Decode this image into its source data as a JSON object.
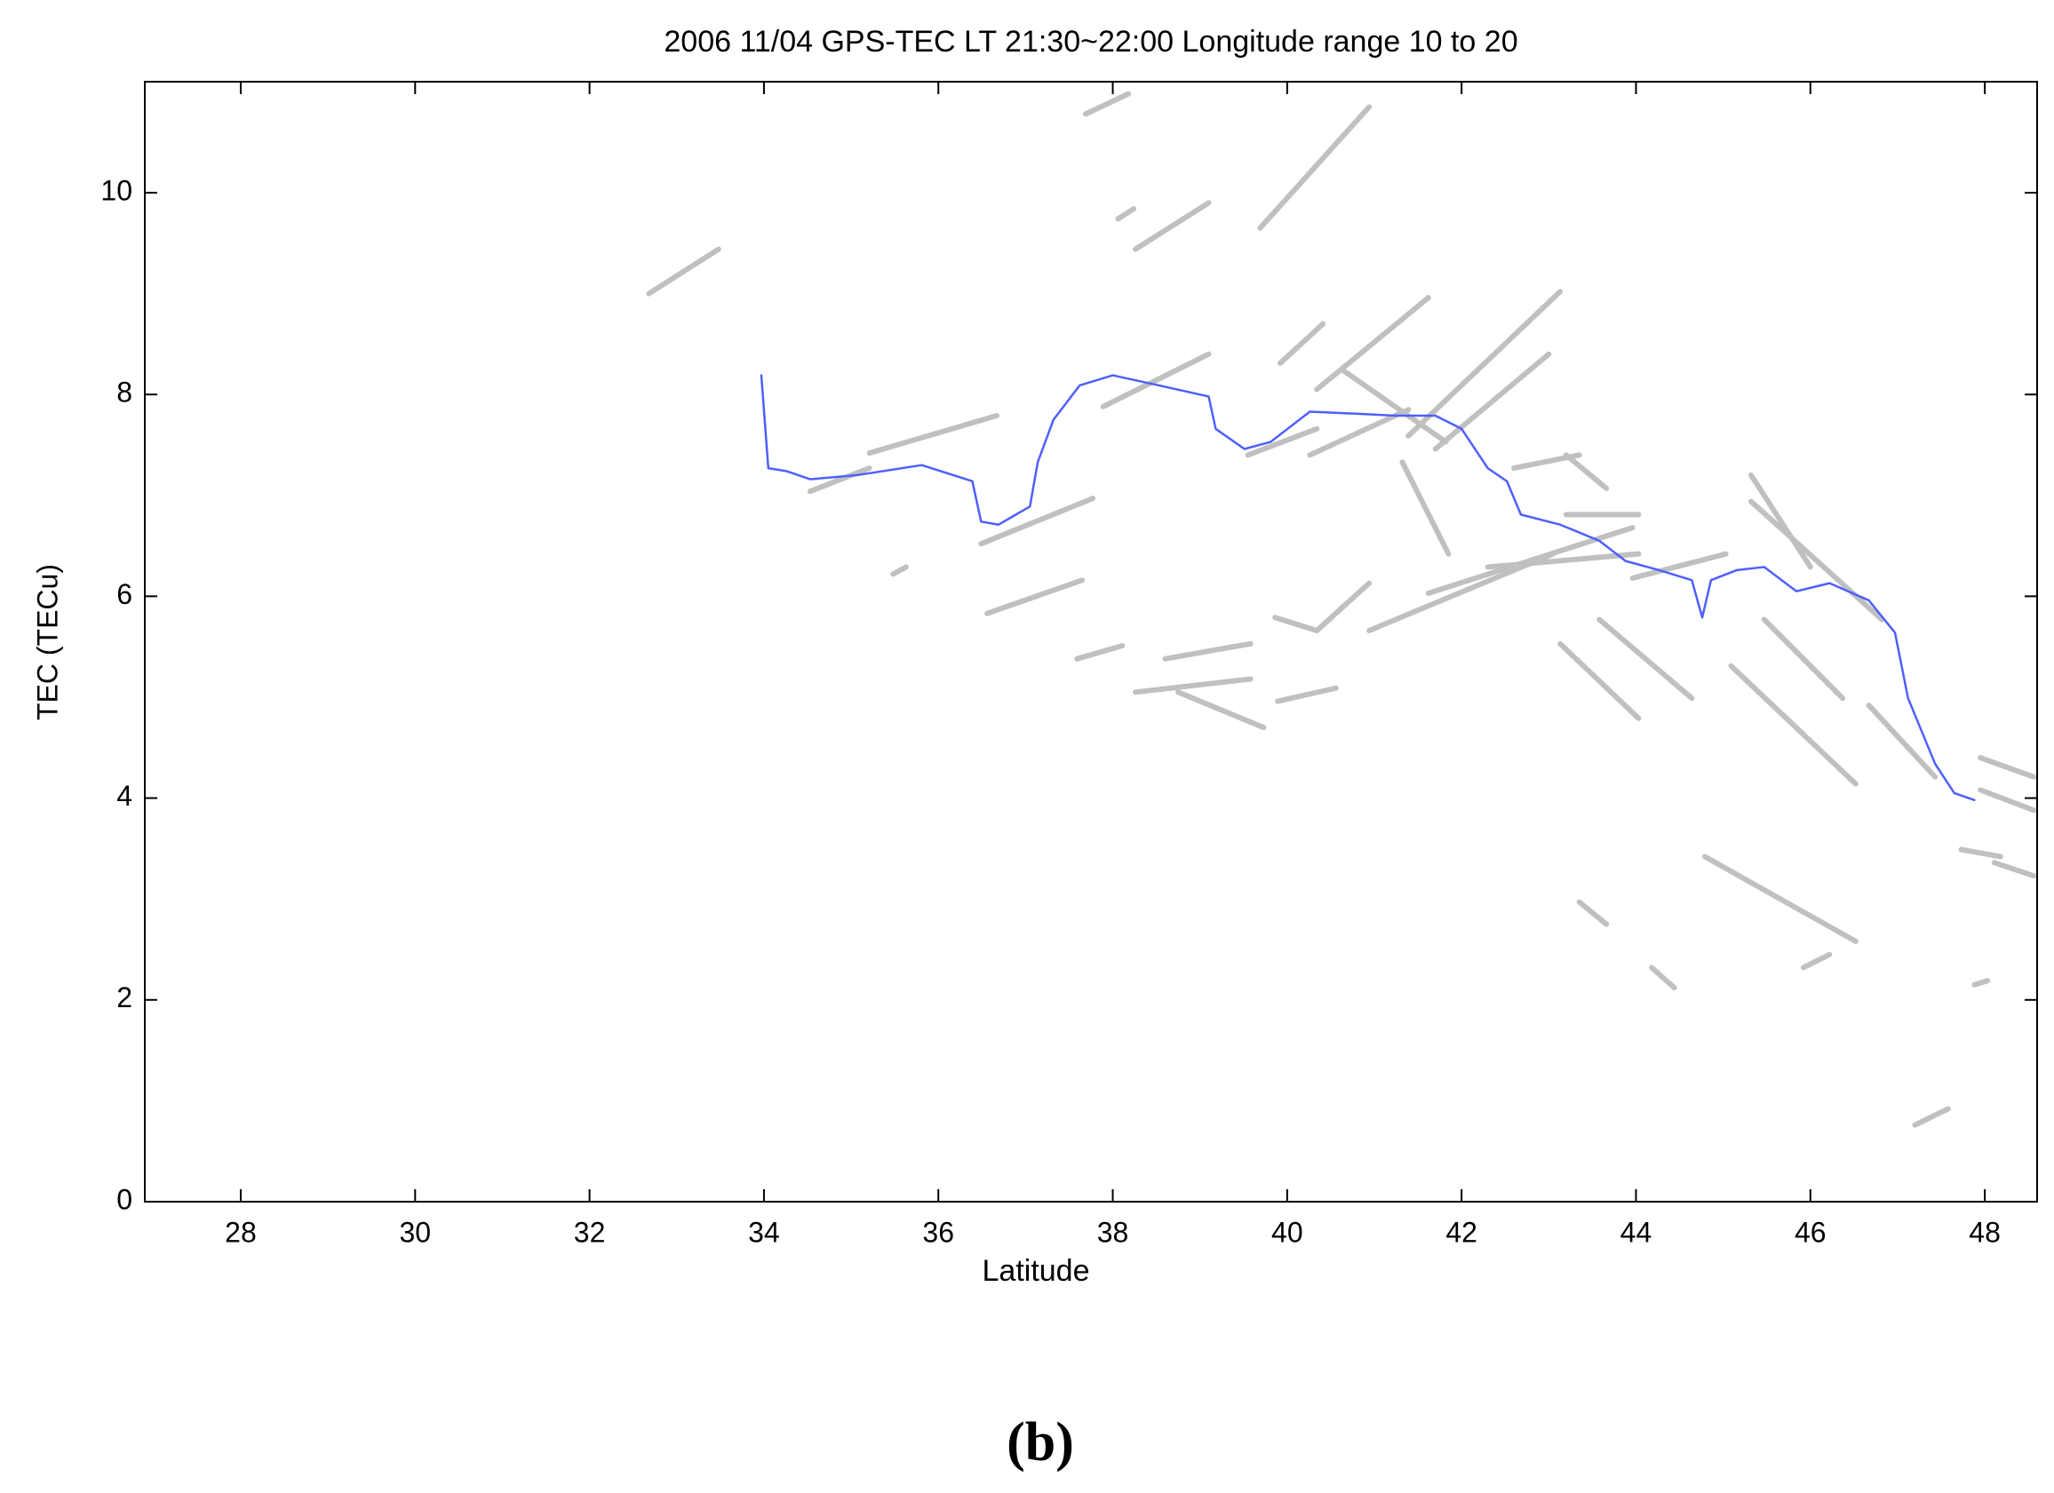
{
  "chart_data": {
    "type": "line",
    "title": "2006 11/04 GPS-TEC LT 21:30~22:00 Longitude range 10 to 20",
    "x_label": "Latitude",
    "y_label": "TEC (TECu)",
    "caption": "(b)",
    "xlim": [
      26.9,
      48.6
    ],
    "ylim": [
      0,
      11.1
    ],
    "xticks": [
      28,
      30,
      32,
      34,
      36,
      38,
      40,
      42,
      44,
      46,
      48
    ],
    "yticks": [
      0,
      2,
      4,
      6,
      8,
      10
    ],
    "series": [
      {
        "color": "#c0c0c0",
        "x": [
          32.68,
          33.48
        ],
        "values": [
          9.0,
          9.44
        ]
      },
      {
        "color": "#c0c0c0",
        "x": [
          34.53,
          35.21
        ],
        "values": [
          7.04,
          7.27
        ]
      },
      {
        "color": "#c0c0c0",
        "x": [
          35.21,
          36.67
        ],
        "values": [
          7.42,
          7.79
        ]
      },
      {
        "color": "#c0c0c0",
        "x": [
          36.49,
          37.77
        ],
        "values": [
          6.52,
          6.97
        ]
      },
      {
        "color": "#c0c0c0",
        "x": [
          36.56,
          37.65
        ],
        "values": [
          5.83,
          6.16
        ]
      },
      {
        "color": "#c0c0c0",
        "x": [
          35.48,
          35.63
        ],
        "values": [
          6.22,
          6.29
        ]
      },
      {
        "color": "#c0c0c0",
        "x": [
          37.59,
          38.11
        ],
        "values": [
          5.38,
          5.51
        ]
      },
      {
        "color": "#c0c0c0",
        "x": [
          37.69,
          38.18
        ],
        "values": [
          10.78,
          10.98
        ]
      },
      {
        "color": "#c0c0c0",
        "x": [
          38.06,
          38.24
        ],
        "values": [
          9.74,
          9.84
        ]
      },
      {
        "color": "#c0c0c0",
        "x": [
          38.26,
          39.1
        ],
        "values": [
          9.44,
          9.9
        ]
      },
      {
        "color": "#c0c0c0",
        "x": [
          39.69,
          40.94
        ],
        "values": [
          9.65,
          10.85
        ]
      },
      {
        "color": "#c0c0c0",
        "x": [
          37.89,
          39.1
        ],
        "values": [
          7.88,
          8.4
        ]
      },
      {
        "color": "#c0c0c0",
        "x": [
          39.92,
          40.41
        ],
        "values": [
          8.31,
          8.7
        ]
      },
      {
        "color": "#c0c0c0",
        "x": [
          40.34,
          41.62
        ],
        "values": [
          8.05,
          8.96
        ]
      },
      {
        "color": "#c0c0c0",
        "x": [
          39.55,
          40.34
        ],
        "values": [
          7.4,
          7.66
        ]
      },
      {
        "color": "#c0c0c0",
        "x": [
          40.26,
          41.39
        ],
        "values": [
          7.4,
          7.85
        ]
      },
      {
        "color": "#c0c0c0",
        "x": [
          40.64,
          41.82
        ],
        "values": [
          8.24,
          7.53
        ]
      },
      {
        "color": "#c0c0c0",
        "x": [
          39.86,
          40.34,
          40.94
        ],
        "values": [
          5.79,
          5.66,
          6.13
        ]
      },
      {
        "color": "#c0c0c0",
        "x": [
          40.94,
          43.05
        ],
        "values": [
          5.66,
          6.42
        ]
      },
      {
        "color": "#c0c0c0",
        "x": [
          41.62,
          43.96
        ],
        "values": [
          6.03,
          6.68
        ]
      },
      {
        "color": "#c0c0c0",
        "x": [
          41.39,
          43.13
        ],
        "values": [
          7.59,
          9.02
        ]
      },
      {
        "color": "#c0c0c0",
        "x": [
          41.7,
          43.0
        ],
        "values": [
          7.46,
          8.4
        ]
      },
      {
        "color": "#c0c0c0",
        "x": [
          41.32,
          41.85
        ],
        "values": [
          7.33,
          6.42
        ]
      },
      {
        "color": "#c0c0c0",
        "x": [
          42.6,
          43.35
        ],
        "values": [
          7.27,
          7.4
        ]
      },
      {
        "color": "#c0c0c0",
        "x": [
          43.2,
          43.66
        ],
        "values": [
          7.4,
          7.07
        ]
      },
      {
        "color": "#c0c0c0",
        "x": [
          42.3,
          44.03
        ],
        "values": [
          6.29,
          6.42
        ]
      },
      {
        "color": "#c0c0c0",
        "x": [
          43.2,
          44.03
        ],
        "values": [
          6.81,
          6.81
        ]
      },
      {
        "color": "#c0c0c0",
        "x": [
          38.26,
          39.58
        ],
        "values": [
          5.05,
          5.18
        ]
      },
      {
        "color": "#c0c0c0",
        "x": [
          38.6,
          39.58
        ],
        "values": [
          5.38,
          5.53
        ]
      },
      {
        "color": "#c0c0c0",
        "x": [
          38.75,
          39.73
        ],
        "values": [
          5.05,
          4.7
        ]
      },
      {
        "color": "#c0c0c0",
        "x": [
          39.89,
          40.56
        ],
        "values": [
          4.96,
          5.09
        ]
      },
      {
        "color": "#c0c0c0",
        "x": [
          43.13,
          44.03
        ],
        "values": [
          5.53,
          4.79
        ]
      },
      {
        "color": "#c0c0c0",
        "x": [
          43.58,
          44.64
        ],
        "values": [
          5.77,
          4.99
        ]
      },
      {
        "color": "#c0c0c0",
        "x": [
          45.32,
          46.0
        ],
        "values": [
          7.2,
          6.29
        ]
      },
      {
        "color": "#c0c0c0",
        "x": [
          45.32,
          46.82
        ],
        "values": [
          6.94,
          5.77
        ]
      },
      {
        "color": "#c0c0c0",
        "x": [
          45.47,
          46.37
        ],
        "values": [
          5.77,
          4.99
        ]
      },
      {
        "color": "#c0c0c0",
        "x": [
          45.09,
          46.52
        ],
        "values": [
          5.31,
          4.14
        ]
      },
      {
        "color": "#c0c0c0",
        "x": [
          46.67,
          47.43
        ],
        "values": [
          4.92,
          4.21
        ]
      },
      {
        "color": "#c0c0c0",
        "x": [
          44.79,
          46.52
        ],
        "values": [
          3.42,
          2.58
        ]
      },
      {
        "color": "#c0c0c0",
        "x": [
          43.35,
          43.66
        ],
        "values": [
          2.97,
          2.75
        ]
      },
      {
        "color": "#c0c0c0",
        "x": [
          44.18,
          44.44
        ],
        "values": [
          2.32,
          2.12
        ]
      },
      {
        "color": "#c0c0c0",
        "x": [
          45.92,
          46.22
        ],
        "values": [
          2.32,
          2.45
        ]
      },
      {
        "color": "#c0c0c0",
        "x": [
          47.2,
          47.58
        ],
        "values": [
          0.76,
          0.92
        ]
      },
      {
        "color": "#c0c0c0",
        "x": [
          47.73,
          48.18
        ],
        "values": [
          3.49,
          3.42
        ]
      },
      {
        "color": "#c0c0c0",
        "x": [
          47.95,
          48.56
        ],
        "values": [
          4.08,
          3.88
        ]
      },
      {
        "color": "#c0c0c0",
        "x": [
          48.11,
          48.56
        ],
        "values": [
          3.36,
          3.23
        ]
      },
      {
        "color": "#c0c0c0",
        "x": [
          47.88,
          48.03
        ],
        "values": [
          2.15,
          2.19
        ]
      },
      {
        "color": "#c0c0c0",
        "x": [
          47.95,
          48.56
        ],
        "values": [
          4.4,
          4.21
        ]
      },
      {
        "color": "#c0c0c0",
        "x": [
          43.96,
          45.03
        ],
        "values": [
          6.18,
          6.42
        ]
      },
      {
        "color": "#4f5fff",
        "x": [
          33.97,
          34.05,
          34.26,
          34.53,
          35.06,
          35.81,
          36.39,
          36.49,
          36.69,
          37.05,
          37.14,
          37.32,
          37.62,
          38.0,
          38.53,
          39.1,
          39.18,
          39.51,
          39.81,
          40.26,
          40.79,
          41.24,
          41.7,
          42.0,
          42.3,
          42.52,
          42.68,
          43.13,
          43.58,
          43.88,
          44.26,
          44.64,
          44.76,
          44.86,
          45.16,
          45.47,
          45.84,
          46.22,
          46.67,
          46.97,
          47.12,
          47.43,
          47.65,
          47.88
        ],
        "values": [
          8.19,
          7.27,
          7.24,
          7.16,
          7.2,
          7.3,
          7.14,
          6.74,
          6.71,
          6.89,
          7.33,
          7.75,
          8.09,
          8.19,
          8.09,
          7.98,
          7.66,
          7.46,
          7.53,
          7.83,
          7.81,
          7.79,
          7.79,
          7.66,
          7.27,
          7.14,
          6.81,
          6.71,
          6.55,
          6.35,
          6.26,
          6.16,
          5.79,
          6.16,
          6.26,
          6.29,
          6.05,
          6.13,
          5.96,
          5.64,
          4.99,
          4.34,
          4.05,
          3.98
        ]
      }
    ]
  }
}
